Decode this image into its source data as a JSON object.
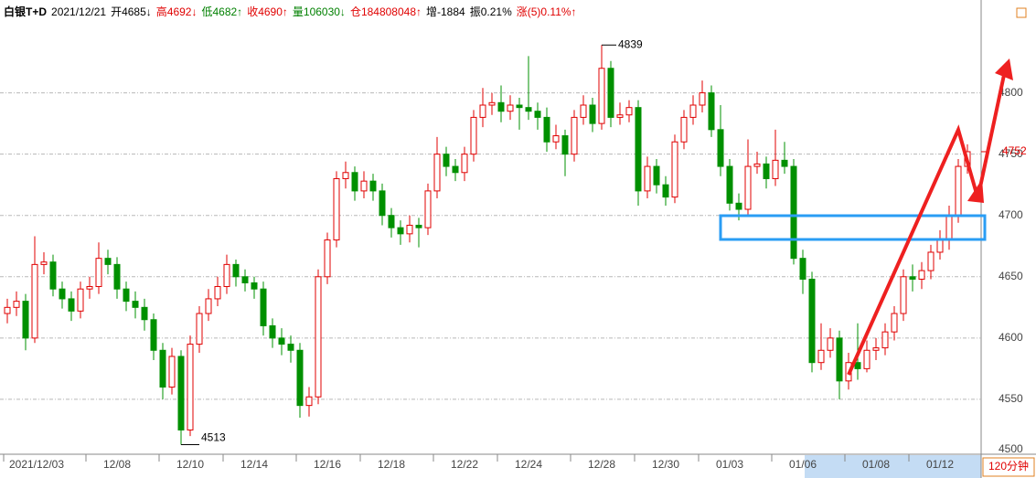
{
  "header": [
    {
      "text": "白银T+D",
      "color": "#000000"
    },
    {
      "text": "2021/12/21",
      "color": "#000000"
    },
    {
      "text": "开4685↓",
      "color": "#000000"
    },
    {
      "text": "高4692↓",
      "color": "#e00000"
    },
    {
      "text": "低4682↑",
      "color": "#008000"
    },
    {
      "text": "收4690↑",
      "color": "#e00000"
    },
    {
      "text": "量106030↓",
      "color": "#008000"
    },
    {
      "text": "仓184808048↑",
      "color": "#e00000"
    },
    {
      "text": "增-1884",
      "color": "#000000"
    },
    {
      "text": "振0.21%",
      "color": "#000000"
    },
    {
      "text": "涨(5)0.11%↑",
      "color": "#e00000"
    }
  ],
  "period": "120分钟",
  "chart_data": {
    "type": "candlestick",
    "categories": [
      null,
      null,
      null,
      "2021/12/03",
      null,
      null,
      null,
      null,
      null,
      null,
      null,
      null,
      "12/08",
      null,
      null,
      null,
      null,
      null,
      null,
      null,
      "12/10",
      null,
      null,
      null,
      null,
      null,
      null,
      "12/14",
      null,
      null,
      null,
      null,
      null,
      null,
      null,
      "12/16",
      null,
      null,
      null,
      null,
      null,
      null,
      "12/18",
      null,
      null,
      null,
      null,
      null,
      null,
      null,
      "12/22",
      null,
      null,
      null,
      null,
      null,
      null,
      "12/24",
      null,
      null,
      null,
      null,
      null,
      null,
      null,
      "12/28",
      null,
      null,
      null,
      null,
      null,
      null,
      "12/30",
      null,
      null,
      null,
      null,
      null,
      null,
      "01/03",
      null,
      null,
      null,
      null,
      null,
      null,
      null,
      "01/06",
      null,
      null,
      null,
      null,
      null,
      null,
      null,
      "01/08",
      null,
      null,
      null,
      null,
      null,
      null,
      "01/12",
      null,
      null,
      null
    ],
    "open": [
      4620,
      4625,
      4630,
      4600,
      4660,
      4662,
      4640,
      4632,
      4622,
      4640,
      4642,
      4665,
      4660,
      4640,
      4630,
      4625,
      4615,
      4590,
      4560,
      4585,
      4525,
      4595,
      4620,
      4632,
      4642,
      4660,
      4650,
      4645,
      4640,
      4610,
      4600,
      4595,
      4590,
      4545,
      4552,
      4650,
      4680,
      4730,
      4735,
      4720,
      4728,
      4720,
      4700,
      4690,
      4685,
      4692,
      4690,
      4720,
      4750,
      4740,
      4735,
      4750,
      4780,
      4790,
      4792,
      4785,
      4790,
      4788,
      4785,
      4780,
      4760,
      4765,
      4750,
      4780,
      4790,
      4775,
      4820,
      4780,
      4782,
      4788,
      4720,
      4740,
      4725,
      4715,
      4760,
      4780,
      4790,
      4800,
      4770,
      4740,
      4710,
      4705,
      4740,
      4742,
      4730,
      4745,
      4740,
      4665,
      4648,
      4580,
      4590,
      4600,
      4565,
      4580,
      4575,
      4590,
      4592,
      4605,
      4620,
      4650,
      4648,
      4655,
      4670,
      4680,
      4700,
      4740
    ],
    "high": [
      4632,
      4638,
      4636,
      4683,
      4670,
      4668,
      4646,
      4638,
      4646,
      4650,
      4678,
      4672,
      4666,
      4646,
      4638,
      4632,
      4620,
      4596,
      4592,
      4590,
      4602,
      4626,
      4640,
      4650,
      4668,
      4664,
      4656,
      4650,
      4646,
      4616,
      4608,
      4602,
      4596,
      4560,
      4656,
      4686,
      4736,
      4744,
      4740,
      4736,
      4734,
      4726,
      4706,
      4696,
      4700,
      4698,
      4726,
      4764,
      4756,
      4746,
      4756,
      4786,
      4804,
      4800,
      4806,
      4798,
      4796,
      4830,
      4792,
      4788,
      4774,
      4770,
      4786,
      4798,
      4796,
      4839,
      4826,
      4792,
      4794,
      4794,
      4748,
      4746,
      4732,
      4766,
      4786,
      4798,
      4810,
      4806,
      4790,
      4746,
      4718,
      4762,
      4752,
      4748,
      4770,
      4760,
      4746,
      4672,
      4654,
      4612,
      4608,
      4606,
      4588,
      4612,
      4598,
      4600,
      4612,
      4626,
      4656,
      4660,
      4662,
      4676,
      4688,
      4708,
      4746,
      4758
    ],
    "low": [
      4612,
      4618,
      4590,
      4596,
      4652,
      4634,
      4624,
      4614,
      4616,
      4632,
      4636,
      4652,
      4632,
      4622,
      4616,
      4606,
      4582,
      4550,
      4554,
      4513,
      4520,
      4588,
      4614,
      4626,
      4636,
      4642,
      4638,
      4632,
      4602,
      4592,
      4586,
      4580,
      4535,
      4536,
      4546,
      4644,
      4674,
      4722,
      4712,
      4714,
      4712,
      4692,
      4682,
      4676,
      4678,
      4674,
      4684,
      4714,
      4732,
      4728,
      4728,
      4744,
      4772,
      4782,
      4776,
      4778,
      4770,
      4778,
      4770,
      4752,
      4754,
      4732,
      4744,
      4774,
      4768,
      4770,
      4772,
      4774,
      4776,
      4708,
      4714,
      4718,
      4708,
      4710,
      4754,
      4774,
      4784,
      4764,
      4732,
      4704,
      4696,
      4700,
      4734,
      4722,
      4724,
      4734,
      4660,
      4636,
      4572,
      4574,
      4584,
      4550,
      4558,
      4566,
      4572,
      4582,
      4586,
      4598,
      4614,
      4638,
      4640,
      4648,
      4664,
      4672,
      4694,
      4734
    ],
    "close": [
      4625,
      4630,
      4600,
      4660,
      4662,
      4640,
      4632,
      4622,
      4640,
      4642,
      4665,
      4660,
      4640,
      4630,
      4625,
      4615,
      4590,
      4560,
      4585,
      4525,
      4595,
      4620,
      4632,
      4642,
      4660,
      4650,
      4645,
      4640,
      4610,
      4600,
      4595,
      4590,
      4545,
      4552,
      4650,
      4680,
      4730,
      4735,
      4720,
      4728,
      4720,
      4700,
      4690,
      4685,
      4692,
      4690,
      4720,
      4750,
      4740,
      4735,
      4750,
      4780,
      4790,
      4792,
      4785,
      4790,
      4788,
      4785,
      4780,
      4760,
      4765,
      4750,
      4780,
      4790,
      4775,
      4820,
      4780,
      4782,
      4788,
      4720,
      4740,
      4725,
      4715,
      4760,
      4780,
      4790,
      4800,
      4770,
      4740,
      4710,
      4705,
      4740,
      4742,
      4730,
      4745,
      4740,
      4665,
      4648,
      4580,
      4590,
      4600,
      4565,
      4580,
      4575,
      4590,
      4592,
      4605,
      4620,
      4650,
      4648,
      4655,
      4670,
      4680,
      4700,
      4740,
      4752
    ],
    "up_color": "#e00000",
    "down_color": "#009000",
    "ylim": [
      4500,
      4872
    ],
    "yticks": [
      4500,
      4550,
      4600,
      4650,
      4700,
      4750,
      4800
    ],
    "grid": true,
    "high_label": 4839,
    "low_label": 4513,
    "last_price": 4752,
    "last_price_color": "#e00000"
  }
}
